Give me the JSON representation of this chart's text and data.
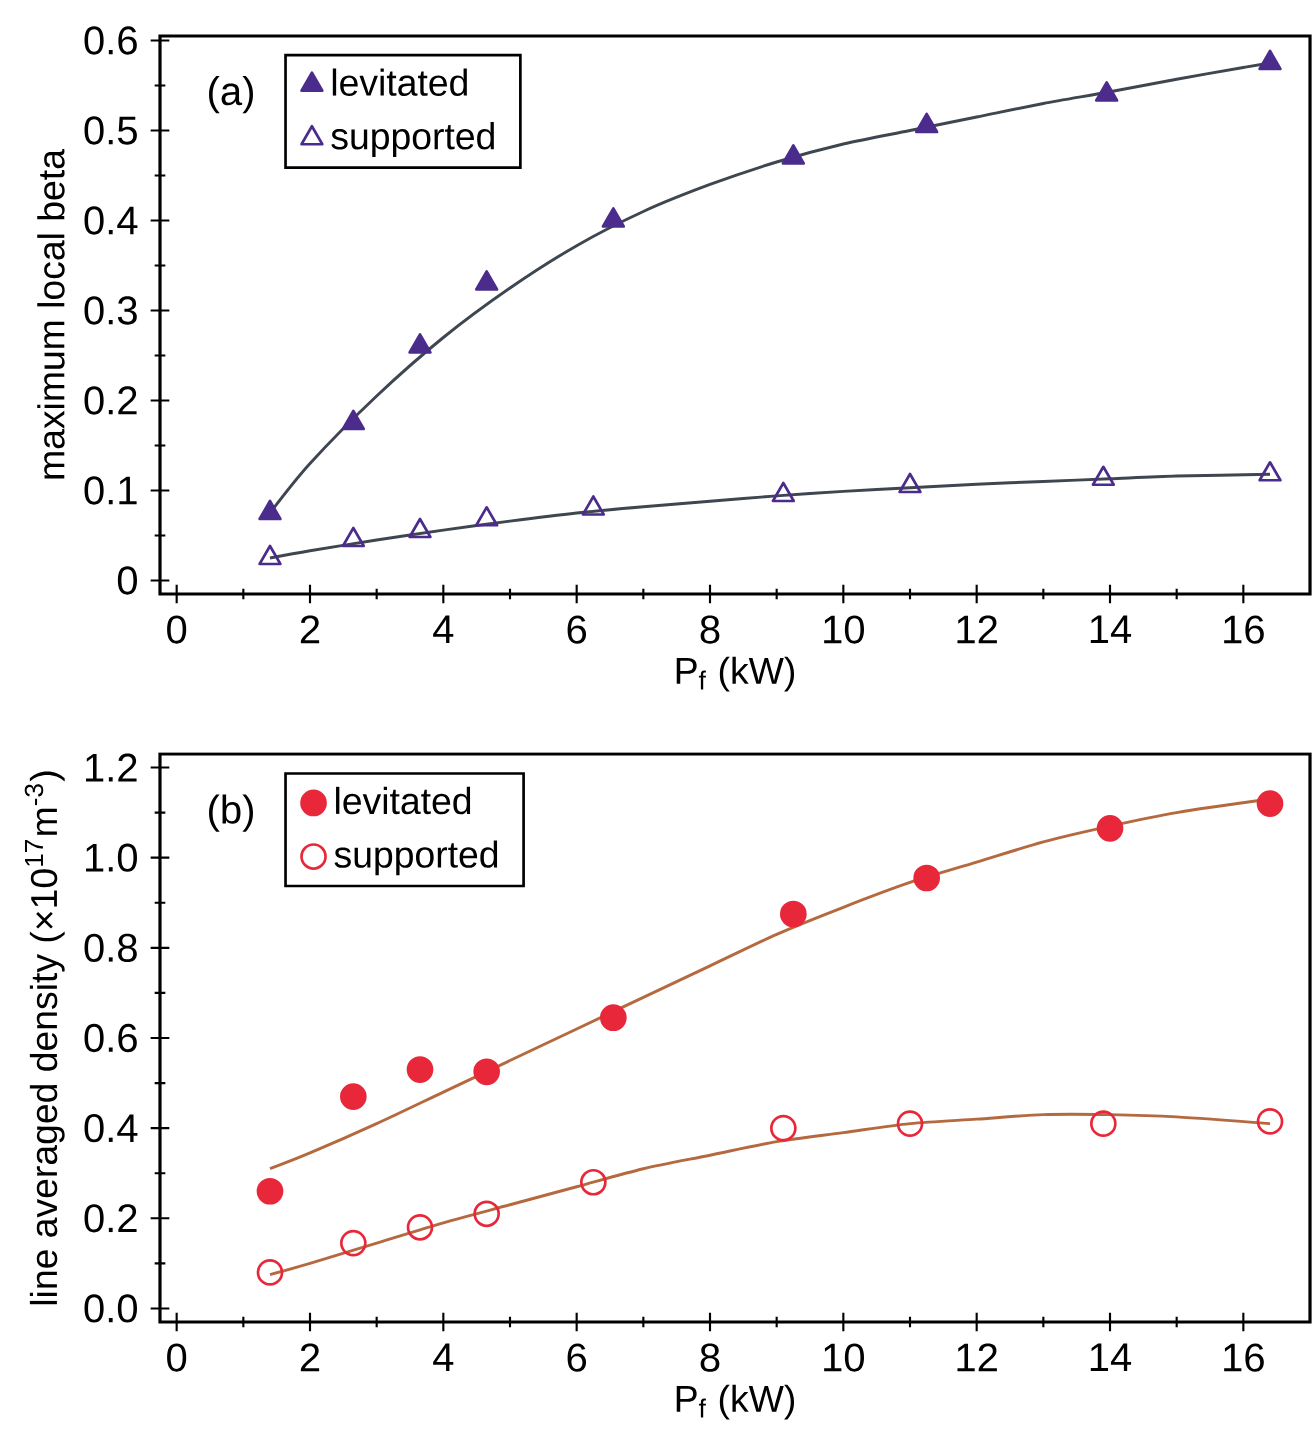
{
  "chart_data": [
    {
      "type": "scatter",
      "xlabel": "P$_{f}$ (kW)",
      "ylabel": "maximum local beta",
      "annotations": [
        "(a)"
      ],
      "legend": "top left",
      "xlim": [
        -0.25,
        17.0
      ],
      "ylim": [
        -0.015,
        0.605
      ],
      "xticks": [
        0,
        2,
        4,
        6,
        8,
        10,
        12,
        14,
        16
      ],
      "yticks": [
        0,
        0.1,
        0.2,
        0.3,
        0.4,
        0.5,
        0.6
      ],
      "series": [
        {
          "name": "levitated",
          "color": "#4b2c8c",
          "marker": "triangle",
          "x": [
            1.4,
            2.65,
            3.65,
            4.65,
            6.55,
            9.25,
            11.25,
            13.95,
            16.4
          ],
          "values": [
            0.075,
            0.175,
            0.26,
            0.33,
            0.4,
            0.47,
            0.505,
            0.54,
            0.575
          ]
        },
        {
          "name": "supported",
          "color": "#4b2c8c",
          "marker": "triangle-open",
          "x": [
            1.4,
            2.65,
            3.65,
            4.65,
            6.25,
            9.1,
            11.0,
            13.9,
            16.4
          ],
          "values": [
            0.025,
            0.045,
            0.055,
            0.068,
            0.08,
            0.095,
            0.105,
            0.113,
            0.118
          ]
        },
        {
          "type": "line",
          "color": "#3e4650",
          "marker": "none",
          "x": [
            1.4,
            2,
            3,
            4,
            5,
            6,
            7,
            8,
            9,
            10,
            11,
            12,
            13,
            14,
            15,
            16,
            16.4
          ],
          "values": [
            0.075,
            0.13,
            0.205,
            0.27,
            0.325,
            0.372,
            0.41,
            0.44,
            0.465,
            0.485,
            0.5,
            0.515,
            0.53,
            0.543,
            0.557,
            0.57,
            0.575
          ]
        },
        {
          "type": "line",
          "color": "#3e4650",
          "marker": "none",
          "x": [
            1.4,
            2,
            3,
            4,
            5,
            6,
            7,
            8,
            9,
            10,
            11,
            12,
            13,
            14,
            15,
            16.4
          ],
          "values": [
            0.025,
            0.033,
            0.045,
            0.056,
            0.066,
            0.075,
            0.082,
            0.088,
            0.094,
            0.099,
            0.103,
            0.107,
            0.11,
            0.113,
            0.116,
            0.118
          ]
        }
      ]
    },
    {
      "type": "scatter",
      "xlabel": "P$_{f}$ (kW)",
      "ylabel": "line averaged density (×10$^{17}$m$^{-3}$)",
      "annotations": [
        "(b)"
      ],
      "legend": "top left",
      "xlim": [
        -0.25,
        17.0
      ],
      "ylim": [
        -0.03,
        1.23
      ],
      "xticks": [
        0,
        2,
        4,
        6,
        8,
        10,
        12,
        14,
        16
      ],
      "yticks": [
        {
          "value": 0,
          "label": "0.0"
        },
        0.2,
        0.4,
        0.6,
        0.8,
        {
          "value": 1,
          "label": "1.0"
        },
        1.2
      ],
      "series": [
        {
          "name": "levitated",
          "color": "#e8283a",
          "marker": "circle",
          "x": [
            1.4,
            2.65,
            3.65,
            4.65,
            6.55,
            9.25,
            11.25,
            14.0,
            16.4
          ],
          "values": [
            0.26,
            0.47,
            0.53,
            0.525,
            0.645,
            0.875,
            0.955,
            1.065,
            1.12
          ]
        },
        {
          "name": "supported",
          "color": "#e8283a",
          "marker": "circle-open",
          "x": [
            1.4,
            2.65,
            3.65,
            4.65,
            6.25,
            9.1,
            11.0,
            13.9,
            16.4
          ],
          "values": [
            0.08,
            0.145,
            0.18,
            0.21,
            0.28,
            0.4,
            0.41,
            0.41,
            0.415
          ]
        },
        {
          "type": "line",
          "color": "#b5693f",
          "marker": "none",
          "x": [
            1.4,
            2,
            3,
            4,
            5,
            6,
            7,
            8,
            9,
            10,
            11,
            12,
            13,
            14,
            15,
            16.4
          ],
          "values": [
            0.31,
            0.345,
            0.41,
            0.48,
            0.55,
            0.62,
            0.69,
            0.76,
            0.83,
            0.89,
            0.945,
            0.99,
            1.035,
            1.07,
            1.1,
            1.13
          ]
        },
        {
          "type": "line",
          "color": "#b5693f",
          "marker": "none",
          "x": [
            1.4,
            2,
            3,
            4,
            5,
            6,
            7,
            8,
            9,
            10,
            11,
            12,
            13,
            14,
            15,
            16.4
          ],
          "values": [
            0.075,
            0.1,
            0.145,
            0.19,
            0.23,
            0.27,
            0.31,
            0.34,
            0.37,
            0.39,
            0.41,
            0.42,
            0.43,
            0.43,
            0.425,
            0.41
          ]
        }
      ]
    }
  ]
}
